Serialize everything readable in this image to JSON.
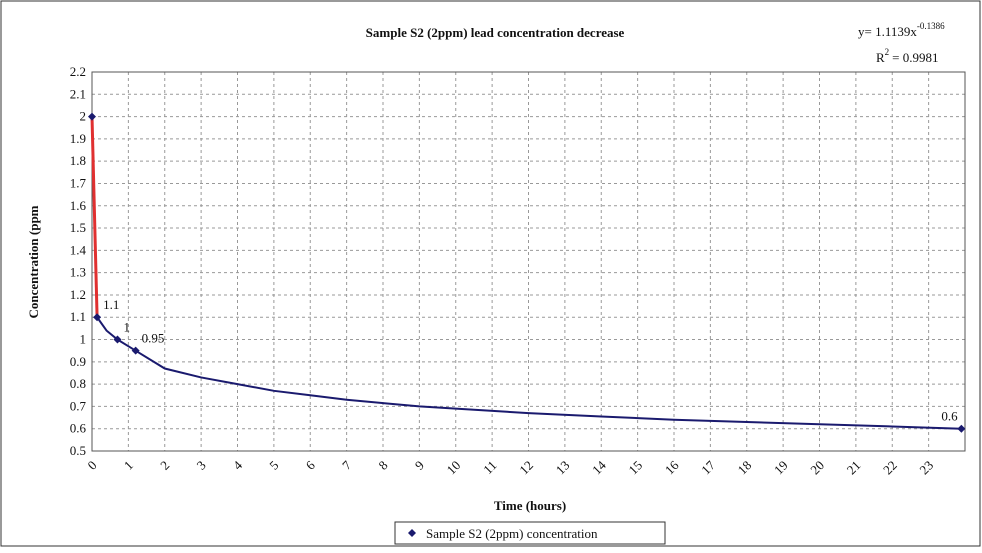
{
  "chart_data": {
    "type": "scatter-line",
    "title": "Sample S2 (2ppm) lead concentration decrease",
    "equation": "y= 1.1139x",
    "equation_exponent": "-0.1386",
    "r2_base": "R",
    "r2_exponent": "2",
    "r2_value": "= 0.9981",
    "xlabel": "Time (hours)",
    "ylabel": "Concentration (ppm",
    "xlim": [
      0,
      24
    ],
    "ylim": [
      0.5,
      2.2
    ],
    "xticks": [
      0,
      1,
      2,
      3,
      4,
      5,
      6,
      7,
      8,
      9,
      10,
      11,
      12,
      13,
      14,
      15,
      16,
      17,
      18,
      19,
      20,
      21,
      22,
      23
    ],
    "yticks": [
      0.5,
      0.6,
      0.7,
      0.8,
      0.9,
      1,
      1.1,
      1.2,
      1.3,
      1.4,
      1.5,
      1.6,
      1.7,
      1.8,
      1.9,
      2,
      2.1,
      2.2
    ],
    "grid": true,
    "series": [
      {
        "name": "Sample S2 (2ppm) concentration",
        "color": "#1a1a6e",
        "line_color": "#e03030",
        "x": [
          0,
          0.14,
          0.7,
          1.2,
          23.9
        ],
        "values": [
          2,
          1.1,
          1,
          0.95,
          0.6
        ],
        "value_labels": [
          null,
          "1.1",
          "1",
          "0.95",
          "0.6"
        ]
      },
      {
        "color": "#1a1a6e",
        "x": [
          0.14,
          0.4,
          0.7,
          1.2,
          2,
          3,
          4,
          5,
          6,
          7,
          8,
          9,
          10,
          12,
          14,
          16,
          18,
          20,
          22,
          23.9
        ],
        "values": [
          1.1,
          1.04,
          1,
          0.95,
          0.87,
          0.83,
          0.8,
          0.77,
          0.75,
          0.73,
          0.715,
          0.7,
          0.69,
          0.67,
          0.655,
          0.64,
          0.63,
          0.62,
          0.61,
          0.6
        ]
      }
    ],
    "legend": "bottom"
  }
}
